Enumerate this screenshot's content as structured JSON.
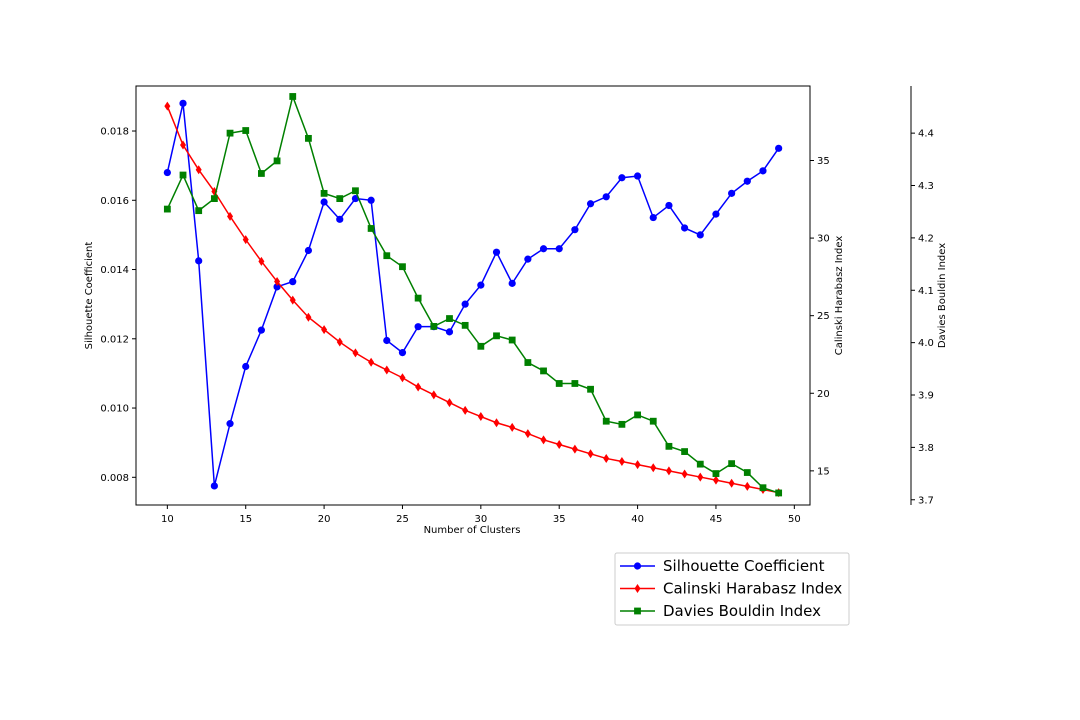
{
  "chart_data": {
    "type": "line",
    "title": "",
    "xlabel": "Number of Clusters",
    "xlim": [
      8,
      51
    ],
    "xticks": [
      10,
      15,
      20,
      25,
      30,
      35,
      40,
      45,
      50
    ],
    "x": [
      10,
      11,
      12,
      13,
      14,
      15,
      16,
      17,
      18,
      19,
      20,
      21,
      22,
      23,
      24,
      25,
      26,
      27,
      28,
      29,
      30,
      31,
      32,
      33,
      34,
      35,
      36,
      37,
      38,
      39,
      40,
      41,
      42,
      43,
      44,
      45,
      46,
      47,
      48,
      49
    ],
    "axes": [
      {
        "id": "silhouette",
        "label": "Silhouette Coefficient",
        "ylim": [
          0.0072,
          0.0193
        ],
        "ticks": [
          0.008,
          0.01,
          0.012,
          0.014,
          0.016,
          0.018
        ],
        "tick_format": 3,
        "position": "left"
      },
      {
        "id": "calinski",
        "label": "Calinski Harabasz Index",
        "ylim": [
          12.8,
          39.8
        ],
        "ticks": [
          15,
          20,
          25,
          30,
          35
        ],
        "tick_format": 0,
        "position": "right"
      },
      {
        "id": "davies",
        "label": "Davies Bouldin Index",
        "ylim": [
          3.69,
          4.49
        ],
        "ticks": [
          3.7,
          3.8,
          3.9,
          4.0,
          4.1,
          4.2,
          4.3,
          4.4
        ],
        "tick_format": 1,
        "position": "right-outer"
      }
    ],
    "series": [
      {
        "name": "Silhouette Coefficient",
        "axis": "silhouette",
        "color": "#0000ff",
        "marker": "circle",
        "values": [
          0.0168,
          0.0188,
          0.01425,
          0.00775,
          0.00955,
          0.0112,
          0.01225,
          0.0135,
          0.01365,
          0.01455,
          0.01595,
          0.01545,
          0.01605,
          0.016,
          0.01195,
          0.0116,
          0.01235,
          0.01235,
          0.0122,
          0.013,
          0.01355,
          0.0145,
          0.0136,
          0.0143,
          0.0146,
          0.0146,
          0.01515,
          0.0159,
          0.0161,
          0.01665,
          0.0167,
          0.0155,
          0.01585,
          0.0152,
          0.015,
          0.0156,
          0.0162,
          0.01655,
          0.01685,
          0.0175
        ]
      },
      {
        "name": "Calinski Harabasz Index",
        "axis": "calinski",
        "color": "#ff0000",
        "marker": "diamond",
        "values": [
          38.5,
          36.0,
          34.4,
          33.0,
          31.4,
          29.9,
          28.5,
          27.2,
          26.0,
          24.9,
          24.1,
          23.3,
          22.6,
          22.0,
          21.5,
          21.0,
          20.4,
          19.9,
          19.4,
          18.9,
          18.5,
          18.1,
          17.8,
          17.4,
          17.0,
          16.7,
          16.4,
          16.1,
          15.8,
          15.6,
          15.4,
          15.2,
          15.0,
          14.8,
          14.6,
          14.4,
          14.2,
          14.0,
          13.8,
          13.6
        ]
      },
      {
        "name": "Davies Bouldin Index",
        "axis": "davies",
        "color": "#008000",
        "marker": "square",
        "values": [
          4.255,
          4.32,
          4.252,
          4.275,
          4.4,
          4.405,
          4.323,
          4.347,
          4.47,
          4.39,
          4.285,
          4.275,
          4.29,
          4.218,
          4.166,
          4.145,
          4.085,
          4.031,
          4.046,
          4.033,
          3.993,
          4.013,
          4.005,
          3.962,
          3.946,
          3.922,
          3.922,
          3.911,
          3.85,
          3.844,
          3.862,
          3.85,
          3.802,
          3.792,
          3.768,
          3.75,
          3.769,
          3.752,
          3.723,
          3.713
        ]
      }
    ],
    "legend": {
      "placement": "below-right"
    },
    "grid": false
  }
}
